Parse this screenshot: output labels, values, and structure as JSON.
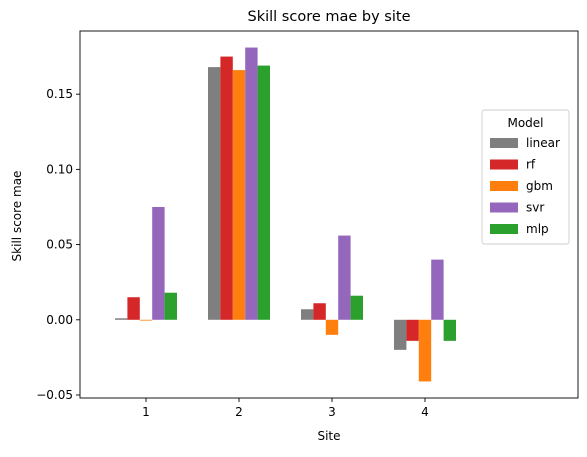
{
  "chart_data": {
    "type": "bar",
    "title": "Skill score mae by site",
    "xlabel": "Site",
    "ylabel": "Skill score mae",
    "categories": [
      "1",
      "2",
      "3",
      "4"
    ],
    "ylim": [
      -0.052,
      0.192
    ],
    "yticks": [
      -0.05,
      0.0,
      0.05,
      0.1,
      0.15
    ],
    "ytick_labels": [
      "−0.05",
      "0.00",
      "0.05",
      "0.10",
      "0.15"
    ],
    "grid": false,
    "legend": {
      "title": "Model",
      "placement": "center-right"
    },
    "series": [
      {
        "name": "linear",
        "color": "#7f7f7f",
        "values": [
          0.001,
          0.168,
          0.007,
          -0.02
        ]
      },
      {
        "name": "rf",
        "color": "#d62728",
        "values": [
          0.015,
          0.175,
          0.011,
          -0.014
        ]
      },
      {
        "name": "gbm",
        "color": "#ff7f0e",
        "values": [
          0.0,
          0.166,
          -0.01,
          -0.041
        ]
      },
      {
        "name": "svr",
        "color": "#9467bd",
        "values": [
          0.075,
          0.181,
          0.056,
          0.04
        ]
      },
      {
        "name": "mlp",
        "color": "#2ca02c",
        "values": [
          0.018,
          0.169,
          0.016,
          -0.014
        ]
      }
    ]
  }
}
